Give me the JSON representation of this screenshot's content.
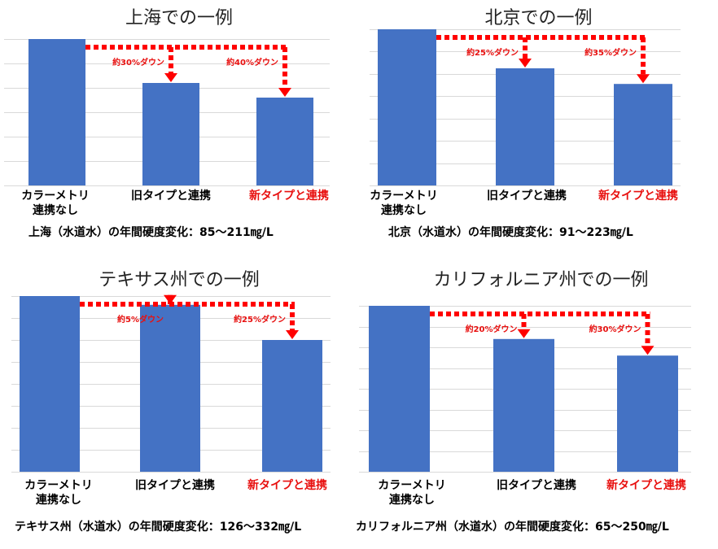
{
  "categories": [
    "カラーメトリ",
    "旧タイプと連携",
    "新タイプと連携"
  ],
  "category_line2": [
    "連携なし",
    "",
    ""
  ],
  "colors": {
    "bar": "#4472c4",
    "arrow": "#ff0000",
    "highlight_label": "#e8100f",
    "grid": "#d9d9d9"
  },
  "chart_data": [
    {
      "type": "bar",
      "title": "上海での一例",
      "categories": [
        "カラーメトリ 連携なし",
        "旧タイプと連携",
        "新タイプと連携"
      ],
      "values": [
        100,
        70,
        60
      ],
      "annotations": [
        "約30%ダウン",
        "約40%ダウン"
      ],
      "caption": "上海（水道水）の年間硬度変化：85～211㎎/L",
      "grid": true
    },
    {
      "type": "bar",
      "title": "北京での一例",
      "categories": [
        "カラーメトリ 連携なし",
        "旧タイプと連携",
        "新タイプと連携"
      ],
      "values": [
        100,
        75,
        65
      ],
      "annotations": [
        "約25%ダウン",
        "約35%ダウン"
      ],
      "caption": "北京（水道水）の年間硬度変化：91～223㎎/L",
      "grid": true
    },
    {
      "type": "bar",
      "title": "テキサス州での一例",
      "categories": [
        "カラーメトリ 連携なし",
        "旧タイプと連携",
        "新タイプと連携"
      ],
      "values": [
        100,
        95,
        75
      ],
      "annotations": [
        "約5%ダウン",
        "約25%ダウン"
      ],
      "caption": "テキサス州（水道水）の年間硬度変化：126～332㎎/L",
      "grid": true
    },
    {
      "type": "bar",
      "title": "カリフォルニア州での一例",
      "categories": [
        "カラーメトリ 連携なし",
        "旧タイプと連携",
        "新タイプと連携"
      ],
      "values": [
        100,
        80,
        70
      ],
      "annotations": [
        "約20%ダウン",
        "約30%ダウン"
      ],
      "caption": "カリフォルニア州（水道水）の年間硬度変化：65～250㎎/L",
      "grid": true
    }
  ]
}
